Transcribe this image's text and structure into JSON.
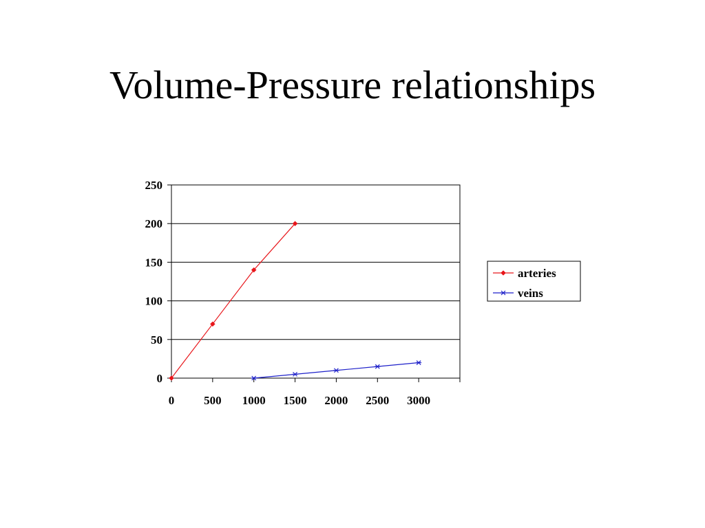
{
  "slide": {
    "title": "Volume-Pressure relationships"
  },
  "chart_data": {
    "type": "line",
    "title": "",
    "xlabel": "",
    "ylabel": "",
    "xlim": [
      0,
      3500
    ],
    "ylim": [
      0,
      250
    ],
    "x_ticks": [
      0,
      500,
      1000,
      1500,
      2000,
      2500,
      3000
    ],
    "y_ticks": [
      0,
      50,
      100,
      150,
      200,
      250
    ],
    "grid": "horizontal",
    "legend_position": "right",
    "series": [
      {
        "name": "arteries",
        "color": "#e8161b",
        "marker": "diamond",
        "x": [
          0,
          500,
          1000,
          1500
        ],
        "y": [
          0,
          70,
          140,
          200
        ]
      },
      {
        "name": "veins",
        "color": "#1c1fc9",
        "marker": "star",
        "x": [
          1000,
          1500,
          2000,
          2500,
          3000
        ],
        "y": [
          0,
          5,
          10,
          15,
          20
        ]
      }
    ]
  }
}
